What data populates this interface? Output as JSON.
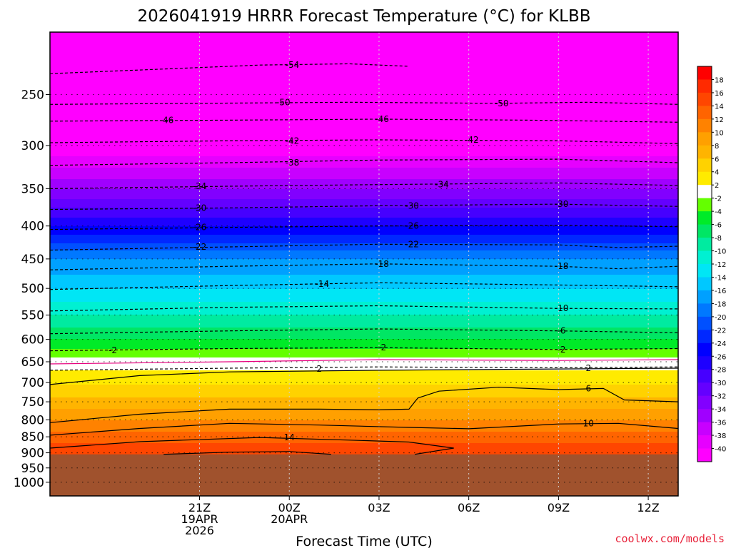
{
  "chart_data": {
    "type": "heatmap",
    "title": "2026041919 HRRR Forecast Temperature (°C) for KLBB",
    "xlabel": "Forecast Time (UTC)",
    "ylabel": "",
    "y_axis": {
      "levels_hpa": [
        250,
        300,
        350,
        400,
        450,
        500,
        550,
        600,
        650,
        700,
        750,
        800,
        850,
        900,
        950,
        1000
      ],
      "range_hpa": [
        200,
        1050
      ],
      "scale": "log-pressure"
    },
    "x_axis": {
      "range_hours_from_run": [
        -3,
        18
      ],
      "ticks": [
        {
          "hour": 2,
          "lines": [
            "21Z",
            "19APR",
            "2026"
          ]
        },
        {
          "hour": 5,
          "lines": [
            "00Z",
            "20APR"
          ]
        },
        {
          "hour": 8,
          "lines": [
            "03Z"
          ]
        },
        {
          "hour": 11,
          "lines": [
            "06Z"
          ]
        },
        {
          "hour": 14,
          "lines": [
            "09Z"
          ]
        },
        {
          "hour": 17,
          "lines": [
            "12Z"
          ]
        }
      ]
    },
    "surface_pressure_hpa": 905,
    "vertical_profile": [
      {
        "p": 230,
        "t": -55
      },
      {
        "p": 250,
        "t": -50
      },
      {
        "p": 300,
        "t": -42
      },
      {
        "p": 350,
        "t": -34
      },
      {
        "p": 400,
        "t": -26
      },
      {
        "p": 450,
        "t": -18
      },
      {
        "p": 500,
        "t": -14
      },
      {
        "p": 550,
        "t": -10
      },
      {
        "p": 600,
        "t": -6
      },
      {
        "p": 640,
        "t": -2
      },
      {
        "p": 670,
        "t": 2
      },
      {
        "p": 740,
        "t": 6
      },
      {
        "p": 800,
        "t": 10
      },
      {
        "p": 870,
        "t": 14
      },
      {
        "p": 905,
        "t": 16
      }
    ],
    "contours": [
      {
        "label": "-54",
        "style": "dashed",
        "points": [
          [
            -3,
            232
          ],
          [
            1,
            228
          ],
          [
            4,
            225
          ],
          [
            7,
            224
          ],
          [
            9,
            226
          ]
        ]
      },
      {
        "label": "-50",
        "style": "dashed",
        "points": [
          [
            -3,
            259
          ],
          [
            2,
            258
          ],
          [
            7,
            257
          ],
          [
            12,
            258
          ],
          [
            15,
            257
          ],
          [
            18,
            259
          ]
        ]
      },
      {
        "label": "-46",
        "style": "dashed",
        "points": [
          [
            -3,
            275
          ],
          [
            3,
            274
          ],
          [
            8,
            273
          ],
          [
            13,
            274
          ],
          [
            18,
            276
          ]
        ]
      },
      {
        "label": "-42",
        "style": "dashed",
        "points": [
          [
            -3,
            297
          ],
          [
            3,
            295
          ],
          [
            8,
            294
          ],
          [
            14,
            295
          ],
          [
            18,
            298
          ]
        ]
      },
      {
        "label": "-38",
        "style": "dashed",
        "points": [
          [
            -3,
            322
          ],
          [
            3,
            319
          ],
          [
            8,
            316
          ],
          [
            14,
            315
          ],
          [
            18,
            319
          ]
        ]
      },
      {
        "label": "-34",
        "style": "dashed",
        "points": [
          [
            -3,
            350
          ],
          [
            3,
            347
          ],
          [
            8,
            345
          ],
          [
            14,
            343
          ],
          [
            18,
            346
          ]
        ]
      },
      {
        "label": "-30",
        "style": "dashed",
        "points": [
          [
            -3,
            377
          ],
          [
            3,
            375
          ],
          [
            8,
            372
          ],
          [
            14,
            370
          ],
          [
            18,
            373
          ]
        ]
      },
      {
        "label": "-26",
        "style": "dashed",
        "points": [
          [
            -3,
            405
          ],
          [
            3,
            402
          ],
          [
            8,
            400
          ],
          [
            14,
            399
          ],
          [
            18,
            401
          ]
        ]
      },
      {
        "label": "-22",
        "style": "dashed",
        "points": [
          [
            -3,
            436
          ],
          [
            3,
            431
          ],
          [
            8,
            427
          ],
          [
            14,
            428
          ],
          [
            16,
            432
          ],
          [
            18,
            430
          ]
        ]
      },
      {
        "label": "-18",
        "style": "dashed",
        "points": [
          [
            -3,
            468
          ],
          [
            3,
            462
          ],
          [
            8,
            458
          ],
          [
            14,
            462
          ],
          [
            16,
            466
          ],
          [
            18,
            462
          ]
        ]
      },
      {
        "label": "-14",
        "style": "dashed",
        "points": [
          [
            -3,
            502
          ],
          [
            3,
            495
          ],
          [
            8,
            490
          ],
          [
            14,
            494
          ],
          [
            18,
            497
          ]
        ]
      },
      {
        "label": "-10",
        "style": "dashed",
        "points": [
          [
            -3,
            542
          ],
          [
            3,
            535
          ],
          [
            8,
            532
          ],
          [
            14,
            537
          ],
          [
            18,
            538
          ]
        ]
      },
      {
        "label": "-6",
        "style": "dashed",
        "points": [
          [
            -3,
            588
          ],
          [
            3,
            582
          ],
          [
            8,
            578
          ],
          [
            14,
            582
          ],
          [
            18,
            586
          ]
        ]
      },
      {
        "label": "-2",
        "style": "dashed",
        "points": [
          [
            -3,
            625
          ],
          [
            3,
            620
          ],
          [
            8,
            618
          ],
          [
            14,
            622
          ],
          [
            18,
            620
          ]
        ]
      },
      {
        "label": "0",
        "style": "zero",
        "points": [
          [
            -3,
            655
          ],
          [
            3,
            650
          ],
          [
            8,
            645
          ],
          [
            14,
            647
          ],
          [
            18,
            645
          ]
        ]
      },
      {
        "label": "2",
        "style": "dashed",
        "points": [
          [
            -3,
            670
          ],
          [
            3,
            665
          ],
          [
            8,
            662
          ],
          [
            14,
            664
          ],
          [
            18,
            662
          ]
        ]
      },
      {
        "label": "2",
        "style": "solid",
        "points": [
          [
            -3,
            705
          ],
          [
            0,
            683
          ],
          [
            3,
            674
          ],
          [
            8,
            670
          ],
          [
            14,
            667
          ],
          [
            18,
            665
          ]
        ]
      },
      {
        "label": "6",
        "style": "solid",
        "points": [
          [
            -3,
            808
          ],
          [
            0,
            784
          ],
          [
            3,
            770
          ],
          [
            6,
            770
          ],
          [
            8,
            772
          ],
          [
            9,
            770
          ],
          [
            9.3,
            740
          ],
          [
            10,
            722
          ],
          [
            12,
            712
          ],
          [
            14,
            718
          ],
          [
            15.5,
            715
          ],
          [
            16.2,
            745
          ],
          [
            18,
            750
          ]
        ]
      },
      {
        "label": "10",
        "style": "solid",
        "points": [
          [
            -3,
            845
          ],
          [
            0,
            825
          ],
          [
            3,
            810
          ],
          [
            6,
            815
          ],
          [
            9,
            822
          ],
          [
            11,
            826
          ],
          [
            14,
            812
          ],
          [
            16,
            810
          ],
          [
            18,
            825
          ]
        ]
      },
      {
        "label": "14",
        "style": "solid",
        "points": [
          [
            -3,
            885
          ],
          [
            0,
            865
          ],
          [
            4,
            852
          ],
          [
            7,
            860
          ],
          [
            9,
            866
          ],
          [
            10.5,
            885
          ],
          [
            9.2,
            905
          ]
        ]
      },
      {
        "label": "16",
        "style": "solid",
        "points": [
          [
            0.8,
            905
          ],
          [
            3,
            898
          ],
          [
            5,
            896
          ],
          [
            6.4,
            905
          ]
        ]
      }
    ],
    "contour_labels": [
      {
        "text": "-54",
        "x": 5.1,
        "p": 225
      },
      {
        "text": "-50",
        "x": 4.8,
        "p": 257
      },
      {
        "text": "-50",
        "x": 12.1,
        "p": 258
      },
      {
        "text": "-46",
        "x": 0.9,
        "p": 274
      },
      {
        "text": "-46",
        "x": 8.1,
        "p": 273
      },
      {
        "text": "-42",
        "x": 5.1,
        "p": 295
      },
      {
        "text": "-42",
        "x": 11.1,
        "p": 294
      },
      {
        "text": "-38",
        "x": 5.1,
        "p": 319
      },
      {
        "text": "-34",
        "x": 2.0,
        "p": 347
      },
      {
        "text": "-34",
        "x": 10.1,
        "p": 345
      },
      {
        "text": "-30",
        "x": 2.0,
        "p": 375
      },
      {
        "text": "-30",
        "x": 9.1,
        "p": 372
      },
      {
        "text": "-30",
        "x": 14.1,
        "p": 370
      },
      {
        "text": "-26",
        "x": 2.0,
        "p": 402
      },
      {
        "text": "-26",
        "x": 9.1,
        "p": 400
      },
      {
        "text": "-22",
        "x": 2.0,
        "p": 431
      },
      {
        "text": "-22",
        "x": 9.1,
        "p": 427
      },
      {
        "text": "-18",
        "x": 8.1,
        "p": 458
      },
      {
        "text": "-18",
        "x": 14.1,
        "p": 462
      },
      {
        "text": "-14",
        "x": 6.1,
        "p": 492
      },
      {
        "text": "-10",
        "x": 14.1,
        "p": 537
      },
      {
        "text": "-6",
        "x": 14.1,
        "p": 582
      },
      {
        "text": "-2",
        "x": -0.9,
        "p": 624
      },
      {
        "text": "-2",
        "x": 8.1,
        "p": 618
      },
      {
        "text": "-2",
        "x": 14.1,
        "p": 622
      },
      {
        "text": "2",
        "x": 6.0,
        "p": 667
      },
      {
        "text": "2",
        "x": 15.0,
        "p": 665
      },
      {
        "text": "6",
        "x": 15.0,
        "p": 715
      },
      {
        "text": "10",
        "x": 15.0,
        "p": 810
      },
      {
        "text": "14",
        "x": 5.0,
        "p": 852
      }
    ],
    "colorbar": {
      "tick_labels": [
        "18",
        "16",
        "14",
        "12",
        "10",
        "8",
        "6",
        "4",
        "2",
        "-2",
        "-4",
        "-6",
        "-8",
        "-10",
        "-12",
        "-14",
        "-16",
        "-18",
        "-20",
        "-22",
        "-24",
        "-26",
        "-28",
        "-30",
        "-32",
        "-34",
        "-36",
        "-38",
        "-40"
      ],
      "bins": [
        {
          "min": 18,
          "max": 99,
          "color": "#ff0000"
        },
        {
          "min": 16,
          "max": 18,
          "color": "#ff2a00"
        },
        {
          "min": 14,
          "max": 16,
          "color": "#ff4600"
        },
        {
          "min": 12,
          "max": 14,
          "color": "#ff6400"
        },
        {
          "min": 10,
          "max": 12,
          "color": "#ff8200"
        },
        {
          "min": 8,
          "max": 10,
          "color": "#ffa000"
        },
        {
          "min": 6,
          "max": 8,
          "color": "#ffb400"
        },
        {
          "min": 4,
          "max": 6,
          "color": "#ffd200"
        },
        {
          "min": 2,
          "max": 4,
          "color": "#ffeb00"
        },
        {
          "min": -2,
          "max": 2,
          "color": "#ffffff"
        },
        {
          "min": -4,
          "max": -2,
          "color": "#64ff00"
        },
        {
          "min": -6,
          "max": -4,
          "color": "#00eb28"
        },
        {
          "min": -8,
          "max": -6,
          "color": "#00e664"
        },
        {
          "min": -10,
          "max": -8,
          "color": "#00eba0"
        },
        {
          "min": -12,
          "max": -10,
          "color": "#00f0d2"
        },
        {
          "min": -14,
          "max": -12,
          "color": "#00e6f5"
        },
        {
          "min": -16,
          "max": -14,
          "color": "#00c8ff"
        },
        {
          "min": -18,
          "max": -16,
          "color": "#00a0ff"
        },
        {
          "min": -20,
          "max": -18,
          "color": "#0078ff"
        },
        {
          "min": -22,
          "max": -20,
          "color": "#0050ff"
        },
        {
          "min": -24,
          "max": -22,
          "color": "#0028ff"
        },
        {
          "min": -26,
          "max": -24,
          "color": "#0000ff"
        },
        {
          "min": -28,
          "max": -26,
          "color": "#1e00ff"
        },
        {
          "min": -30,
          "max": -28,
          "color": "#4600ff"
        },
        {
          "min": -32,
          "max": -30,
          "color": "#6400ff"
        },
        {
          "min": -34,
          "max": -32,
          "color": "#8200ff"
        },
        {
          "min": -36,
          "max": -34,
          "color": "#a000ff"
        },
        {
          "min": -38,
          "max": -36,
          "color": "#c800ff"
        },
        {
          "min": -40,
          "max": -38,
          "color": "#e600ff"
        },
        {
          "min": -99,
          "max": -40,
          "color": "#ff00ff"
        }
      ]
    },
    "colors": {
      "below_ground": "#a0522d",
      "zero_contour": "#e6007e",
      "credit": "#e8223a"
    }
  },
  "credit": "coolwx.com/models"
}
